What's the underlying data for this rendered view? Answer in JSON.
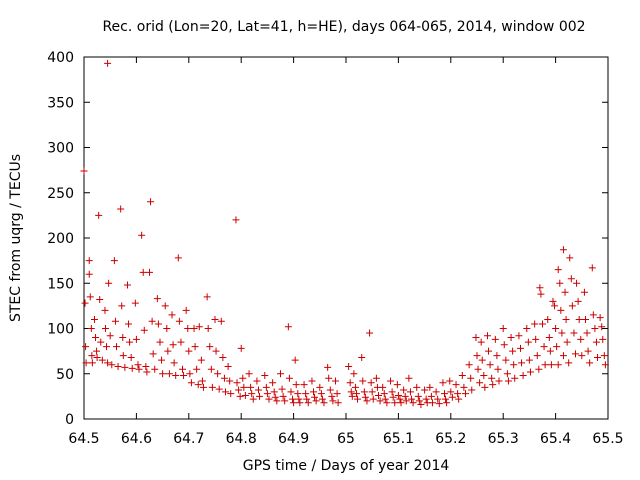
{
  "chart_data": {
    "type": "scatter",
    "title": "Rec. orid (Lon=20, Lat=41, h=HE), days 064-065, 2014, window 002",
    "xlabel": "GPS time / Days of year 2014",
    "ylabel": "STEC from uqrg / TECUs",
    "xlim": [
      64.5,
      65.5
    ],
    "ylim": [
      0,
      400
    ],
    "xticks": [
      "64.5",
      "64.6",
      "64.7",
      "64.8",
      "64.9",
      "65",
      "65.1",
      "65.2",
      "65.3",
      "65.4",
      "65.5"
    ],
    "yticks": [
      "0",
      "50",
      "100",
      "150",
      "200",
      "250",
      "300",
      "350",
      "400"
    ],
    "grid": false,
    "marker": "+",
    "color": "#cc0000",
    "points": [
      [
        64.5,
        274
      ],
      [
        64.502,
        128
      ],
      [
        64.503,
        80
      ],
      [
        64.504,
        62
      ],
      [
        64.51,
        160
      ],
      [
        64.51,
        175
      ],
      [
        64.512,
        135
      ],
      [
        64.514,
        100
      ],
      [
        64.515,
        70
      ],
      [
        64.516,
        62
      ],
      [
        64.52,
        110
      ],
      [
        64.522,
        90
      ],
      [
        64.524,
        75
      ],
      [
        64.525,
        68
      ],
      [
        64.528,
        225
      ],
      [
        64.53,
        132
      ],
      [
        64.532,
        85
      ],
      [
        64.535,
        65
      ],
      [
        64.54,
        120
      ],
      [
        64.541,
        100
      ],
      [
        64.543,
        80
      ],
      [
        64.545,
        62
      ],
      [
        64.545,
        393
      ],
      [
        64.547,
        150
      ],
      [
        64.55,
        92
      ],
      [
        64.553,
        60
      ],
      [
        64.558,
        175
      ],
      [
        64.56,
        108
      ],
      [
        64.562,
        80
      ],
      [
        64.565,
        58
      ],
      [
        64.57,
        232
      ],
      [
        64.572,
        125
      ],
      [
        64.574,
        90
      ],
      [
        64.575,
        70
      ],
      [
        64.578,
        57
      ],
      [
        64.583,
        148
      ],
      [
        64.585,
        105
      ],
      [
        64.587,
        85
      ],
      [
        64.59,
        68
      ],
      [
        64.592,
        56
      ],
      [
        64.598,
        128
      ],
      [
        64.6,
        88
      ],
      [
        64.603,
        60
      ],
      [
        64.605,
        55
      ],
      [
        64.61,
        203
      ],
      [
        64.613,
        162
      ],
      [
        64.615,
        98
      ],
      [
        64.618,
        58
      ],
      [
        64.62,
        52
      ],
      [
        64.625,
        162
      ],
      [
        64.627,
        240
      ],
      [
        64.63,
        108
      ],
      [
        64.632,
        72
      ],
      [
        64.635,
        55
      ],
      [
        64.64,
        133
      ],
      [
        64.642,
        105
      ],
      [
        64.645,
        85
      ],
      [
        64.648,
        65
      ],
      [
        64.65,
        50
      ],
      [
        64.655,
        125
      ],
      [
        64.658,
        100
      ],
      [
        64.66,
        75
      ],
      [
        64.663,
        50
      ],
      [
        64.668,
        115
      ],
      [
        64.67,
        82
      ],
      [
        64.672,
        62
      ],
      [
        64.675,
        48
      ],
      [
        64.68,
        178
      ],
      [
        64.682,
        108
      ],
      [
        64.685,
        85
      ],
      [
        64.688,
        55
      ],
      [
        64.69,
        48
      ],
      [
        64.695,
        120
      ],
      [
        64.698,
        100
      ],
      [
        64.7,
        75
      ],
      [
        64.702,
        50
      ],
      [
        64.705,
        40
      ],
      [
        64.71,
        100
      ],
      [
        64.712,
        80
      ],
      [
        64.715,
        55
      ],
      [
        64.718,
        38
      ],
      [
        64.72,
        102
      ],
      [
        64.724,
        65
      ],
      [
        64.726,
        42
      ],
      [
        64.728,
        35
      ],
      [
        64.735,
        135
      ],
      [
        64.737,
        100
      ],
      [
        64.74,
        80
      ],
      [
        64.743,
        55
      ],
      [
        64.745,
        35
      ],
      [
        64.75,
        110
      ],
      [
        64.752,
        75
      ],
      [
        64.755,
        50
      ],
      [
        64.758,
        33
      ],
      [
        64.762,
        108
      ],
      [
        64.765,
        68
      ],
      [
        64.768,
        45
      ],
      [
        64.77,
        30
      ],
      [
        64.775,
        58
      ],
      [
        64.778,
        42
      ],
      [
        64.78,
        28
      ],
      [
        64.79,
        220
      ],
      [
        64.792,
        40
      ],
      [
        64.795,
        32
      ],
      [
        64.798,
        25
      ],
      [
        64.8,
        78
      ],
      [
        64.803,
        45
      ],
      [
        64.805,
        35
      ],
      [
        64.808,
        26
      ],
      [
        64.815,
        50
      ],
      [
        64.818,
        35
      ],
      [
        64.82,
        28
      ],
      [
        64.823,
        22
      ],
      [
        64.83,
        42
      ],
      [
        64.833,
        32
      ],
      [
        64.835,
        25
      ],
      [
        64.845,
        48
      ],
      [
        64.848,
        35
      ],
      [
        64.85,
        28
      ],
      [
        64.853,
        22
      ],
      [
        64.86,
        40
      ],
      [
        64.863,
        30
      ],
      [
        64.865,
        24
      ],
      [
        64.868,
        20
      ],
      [
        64.875,
        50
      ],
      [
        64.878,
        33
      ],
      [
        64.88,
        25
      ],
      [
        64.883,
        20
      ],
      [
        64.89,
        102
      ],
      [
        64.892,
        45
      ],
      [
        64.895,
        30
      ],
      [
        64.898,
        22
      ],
      [
        64.9,
        18
      ],
      [
        64.903,
        65
      ],
      [
        64.905,
        38
      ],
      [
        64.908,
        28
      ],
      [
        64.91,
        22
      ],
      [
        64.912,
        18
      ],
      [
        64.92,
        38
      ],
      [
        64.923,
        28
      ],
      [
        64.925,
        22
      ],
      [
        64.928,
        18
      ],
      [
        64.935,
        42
      ],
      [
        64.938,
        30
      ],
      [
        64.94,
        24
      ],
      [
        64.943,
        20
      ],
      [
        64.95,
        35
      ],
      [
        64.953,
        28
      ],
      [
        64.955,
        22
      ],
      [
        64.958,
        18
      ],
      [
        64.965,
        57
      ],
      [
        64.967,
        45
      ],
      [
        64.97,
        32
      ],
      [
        64.973,
        25
      ],
      [
        64.975,
        20
      ],
      [
        64.98,
        42
      ],
      [
        64.983,
        28
      ],
      [
        64.985,
        18
      ],
      [
        65.005,
        58
      ],
      [
        65.008,
        40
      ],
      [
        65.01,
        30
      ],
      [
        65.012,
        25
      ],
      [
        65.015,
        50
      ],
      [
        65.018,
        35
      ],
      [
        65.02,
        28
      ],
      [
        65.022,
        22
      ],
      [
        65.03,
        68
      ],
      [
        65.032,
        42
      ],
      [
        65.035,
        30
      ],
      [
        65.037,
        24
      ],
      [
        65.04,
        20
      ],
      [
        65.045,
        95
      ],
      [
        65.048,
        40
      ],
      [
        65.05,
        30
      ],
      [
        65.052,
        22
      ],
      [
        65.058,
        45
      ],
      [
        65.06,
        35
      ],
      [
        65.062,
        26
      ],
      [
        65.065,
        20
      ],
      [
        65.07,
        35
      ],
      [
        65.073,
        28
      ],
      [
        65.075,
        22
      ],
      [
        65.078,
        18
      ],
      [
        65.085,
        42
      ],
      [
        65.088,
        30
      ],
      [
        65.09,
        24
      ],
      [
        65.093,
        18
      ],
      [
        65.098,
        38
      ],
      [
        65.1,
        26
      ],
      [
        65.103,
        22
      ],
      [
        65.105,
        18
      ],
      [
        65.11,
        32
      ],
      [
        65.113,
        25
      ],
      [
        65.115,
        20
      ],
      [
        65.12,
        45
      ],
      [
        65.123,
        30
      ],
      [
        65.125,
        22
      ],
      [
        65.128,
        18
      ],
      [
        65.135,
        35
      ],
      [
        65.138,
        25
      ],
      [
        65.14,
        20
      ],
      [
        65.143,
        16
      ],
      [
        65.15,
        32
      ],
      [
        65.153,
        22
      ],
      [
        65.155,
        18
      ],
      [
        65.16,
        35
      ],
      [
        65.163,
        25
      ],
      [
        65.165,
        18
      ],
      [
        65.172,
        30
      ],
      [
        65.175,
        22
      ],
      [
        65.178,
        17
      ],
      [
        65.185,
        40
      ],
      [
        65.188,
        28
      ],
      [
        65.19,
        22
      ],
      [
        65.192,
        18
      ],
      [
        65.198,
        42
      ],
      [
        65.2,
        30
      ],
      [
        65.203,
        24
      ],
      [
        65.21,
        38
      ],
      [
        65.213,
        28
      ],
      [
        65.215,
        22
      ],
      [
        65.222,
        48
      ],
      [
        65.225,
        35
      ],
      [
        65.228,
        28
      ],
      [
        65.235,
        60
      ],
      [
        65.238,
        45
      ],
      [
        65.24,
        32
      ],
      [
        65.248,
        90
      ],
      [
        65.25,
        70
      ],
      [
        65.252,
        55
      ],
      [
        65.255,
        40
      ],
      [
        65.258,
        85
      ],
      [
        65.26,
        65
      ],
      [
        65.263,
        48
      ],
      [
        65.265,
        35
      ],
      [
        65.27,
        92
      ],
      [
        65.272,
        75
      ],
      [
        65.275,
        60
      ],
      [
        65.278,
        45
      ],
      [
        65.28,
        38
      ],
      [
        65.285,
        88
      ],
      [
        65.288,
        70
      ],
      [
        65.29,
        55
      ],
      [
        65.292,
        42
      ],
      [
        65.3,
        100
      ],
      [
        65.302,
        82
      ],
      [
        65.305,
        65
      ],
      [
        65.308,
        50
      ],
      [
        65.31,
        42
      ],
      [
        65.315,
        90
      ],
      [
        65.318,
        75
      ],
      [
        65.32,
        60
      ],
      [
        65.322,
        45
      ],
      [
        65.33,
        92
      ],
      [
        65.333,
        78
      ],
      [
        65.335,
        62
      ],
      [
        65.338,
        48
      ],
      [
        65.345,
        100
      ],
      [
        65.348,
        85
      ],
      [
        65.35,
        65
      ],
      [
        65.352,
        52
      ],
      [
        65.36,
        105
      ],
      [
        65.362,
        88
      ],
      [
        65.365,
        70
      ],
      [
        65.368,
        55
      ],
      [
        65.37,
        145
      ],
      [
        65.372,
        138
      ],
      [
        65.375,
        105
      ],
      [
        65.378,
        80
      ],
      [
        65.38,
        60
      ],
      [
        65.385,
        110
      ],
      [
        65.388,
        90
      ],
      [
        65.39,
        75
      ],
      [
        65.392,
        60
      ],
      [
        65.395,
        130
      ],
      [
        65.398,
        125
      ],
      [
        65.4,
        100
      ],
      [
        65.402,
        80
      ],
      [
        65.405,
        60
      ],
      [
        65.405,
        165
      ],
      [
        65.408,
        150
      ],
      [
        65.41,
        120
      ],
      [
        65.412,
        95
      ],
      [
        65.415,
        70
      ],
      [
        65.415,
        187
      ],
      [
        65.418,
        140
      ],
      [
        65.42,
        110
      ],
      [
        65.422,
        85
      ],
      [
        65.425,
        62
      ],
      [
        65.427,
        178
      ],
      [
        65.43,
        155
      ],
      [
        65.432,
        125
      ],
      [
        65.435,
        95
      ],
      [
        65.438,
        72
      ],
      [
        65.44,
        150
      ],
      [
        65.443,
        130
      ],
      [
        65.445,
        110
      ],
      [
        65.448,
        88
      ],
      [
        65.45,
        70
      ],
      [
        65.455,
        140
      ],
      [
        65.457,
        110
      ],
      [
        65.46,
        95
      ],
      [
        65.462,
        75
      ],
      [
        65.465,
        62
      ],
      [
        65.47,
        167
      ],
      [
        65.472,
        115
      ],
      [
        65.475,
        100
      ],
      [
        65.478,
        85
      ],
      [
        65.48,
        68
      ],
      [
        65.485,
        112
      ],
      [
        65.488,
        102
      ],
      [
        65.49,
        88
      ],
      [
        65.493,
        70
      ],
      [
        65.495,
        60
      ]
    ]
  }
}
